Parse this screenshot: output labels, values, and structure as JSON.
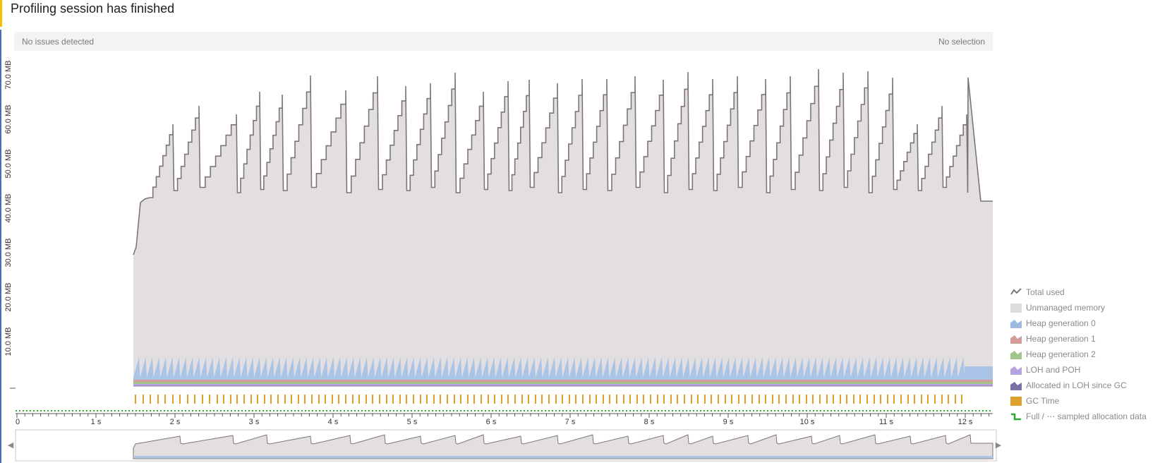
{
  "banner": {
    "title": "Profiling session has finished"
  },
  "status": {
    "issues": "No issues detected",
    "selection": "No selection"
  },
  "y_axis": {
    "ticks": [
      "10.0 MB",
      "20.0 MB",
      "30.0 MB",
      "40.0 MB",
      "50.0 MB",
      "60.0 MB",
      "70.0 MB"
    ]
  },
  "x_axis": {
    "ticks": [
      "0",
      "1 s",
      "2 s",
      "3 s",
      "4 s",
      "5 s",
      "6 s",
      "7 s",
      "8 s",
      "9 s",
      "10 s",
      "11 s",
      "12 s"
    ]
  },
  "legend": [
    {
      "label": "Total used",
      "icon": "total-used-icon",
      "color": "#7d7575"
    },
    {
      "label": "Unmanaged memory",
      "icon": "unmanaged-memory-icon",
      "color": "#dddddd"
    },
    {
      "label": "Heap generation 0",
      "icon": "heap-gen0-icon",
      "color": "#9dbbe0"
    },
    {
      "label": "Heap generation 1",
      "icon": "heap-gen1-icon",
      "color": "#d49b9b"
    },
    {
      "label": "Heap generation 2",
      "icon": "heap-gen2-icon",
      "color": "#a3c48a"
    },
    {
      "label": "LOH and POH",
      "icon": "loh-poh-icon",
      "color": "#b4a3de"
    },
    {
      "label": "Allocated in LOH since GC",
      "icon": "loh-alloc-icon",
      "color": "#7b6fa8"
    },
    {
      "label": "GC Time",
      "icon": "gc-time-icon",
      "color": "#dfa12e"
    },
    {
      "label": "Full / ⋯ sampled allocation data",
      "icon": "allocation-data-icon",
      "color": "#2fa82f"
    }
  ],
  "colors": {
    "total_line": "#7d7575",
    "unmanaged_fill": "#e3dfe0",
    "gc_time": "#e0a12a",
    "sample_green": "#2fa82f"
  }
}
